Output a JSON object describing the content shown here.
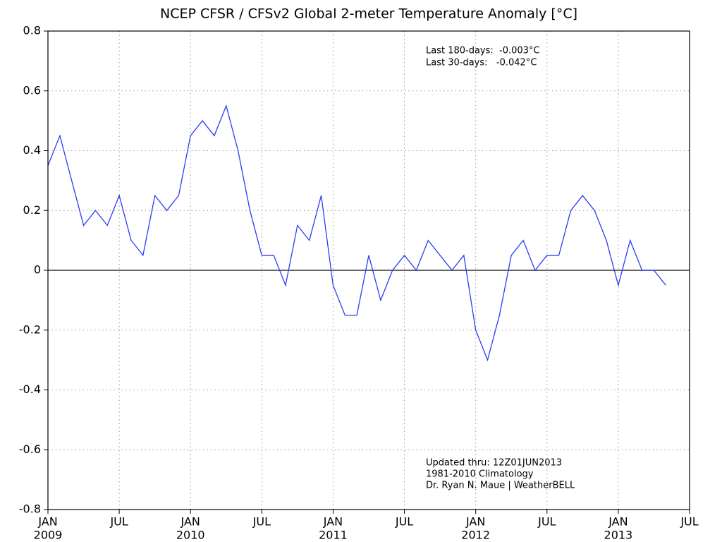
{
  "chart_data": {
    "type": "line",
    "title": "NCEP CFSR / CFSv2 Global 2-meter Temperature Anomaly [°C]",
    "annotations_top": [
      "Last 180-days:  -0.003°C",
      "Last 30-days:   -0.042°C"
    ],
    "annotations_bottom": [
      "Updated thru: 12Z01JUN2013",
      "1981-2010 Climatology",
      "Dr. Ryan N. Maue | WeatherBELL"
    ],
    "x": [
      "2009-01",
      "2009-02",
      "2009-03",
      "2009-04",
      "2009-05",
      "2009-06",
      "2009-07",
      "2009-08",
      "2009-09",
      "2009-10",
      "2009-11",
      "2009-12",
      "2010-01",
      "2010-02",
      "2010-03",
      "2010-04",
      "2010-05",
      "2010-06",
      "2010-07",
      "2010-08",
      "2010-09",
      "2010-10",
      "2010-11",
      "2010-12",
      "2011-01",
      "2011-02",
      "2011-03",
      "2011-04",
      "2011-05",
      "2011-06",
      "2011-07",
      "2011-08",
      "2011-09",
      "2011-10",
      "2011-11",
      "2011-12",
      "2012-01",
      "2012-02",
      "2012-03",
      "2012-04",
      "2012-05",
      "2012-06",
      "2012-07",
      "2012-08",
      "2012-09",
      "2012-10",
      "2012-11",
      "2012-12",
      "2013-01",
      "2013-02",
      "2013-03",
      "2013-04",
      "2013-05"
    ],
    "series": [
      {
        "name": "Global 2-meter Temperature Anomaly",
        "color": "#2b3cf5",
        "values": [
          0.35,
          0.45,
          0.3,
          0.15,
          0.2,
          0.15,
          0.25,
          0.1,
          0.05,
          0.25,
          0.2,
          0.25,
          0.45,
          0.5,
          0.45,
          0.55,
          0.4,
          0.2,
          0.05,
          0.05,
          -0.05,
          0.15,
          0.1,
          0.25,
          -0.05,
          -0.15,
          -0.15,
          0.05,
          -0.1,
          0.0,
          0.05,
          0.0,
          0.1,
          0.05,
          0.0,
          0.05,
          -0.2,
          -0.3,
          -0.15,
          0.05,
          0.1,
          0.0,
          0.05,
          0.05,
          0.2,
          0.25,
          0.2,
          0.1,
          -0.05,
          0.1,
          0.0,
          0.0,
          -0.05
        ]
      }
    ],
    "xlim": [
      "2009-01",
      "2013-07"
    ],
    "xticks": [
      {
        "value": "2009-01",
        "label": "JAN",
        "year": "2009"
      },
      {
        "value": "2009-07",
        "label": "JUL"
      },
      {
        "value": "2010-01",
        "label": "JAN",
        "year": "2010"
      },
      {
        "value": "2010-07",
        "label": "JUL"
      },
      {
        "value": "2011-01",
        "label": "JAN",
        "year": "2011"
      },
      {
        "value": "2011-07",
        "label": "JUL"
      },
      {
        "value": "2012-01",
        "label": "JAN",
        "year": "2012"
      },
      {
        "value": "2012-07",
        "label": "JUL"
      },
      {
        "value": "2013-01",
        "label": "JAN",
        "year": "2013"
      },
      {
        "value": "2013-07",
        "label": "JUL"
      }
    ],
    "ylim": [
      -0.8,
      0.8
    ],
    "yticks": [
      -0.8,
      -0.6,
      -0.4,
      -0.2,
      0,
      0.2,
      0.4,
      0.6,
      0.8
    ],
    "zero_line": 0,
    "grid": true
  }
}
